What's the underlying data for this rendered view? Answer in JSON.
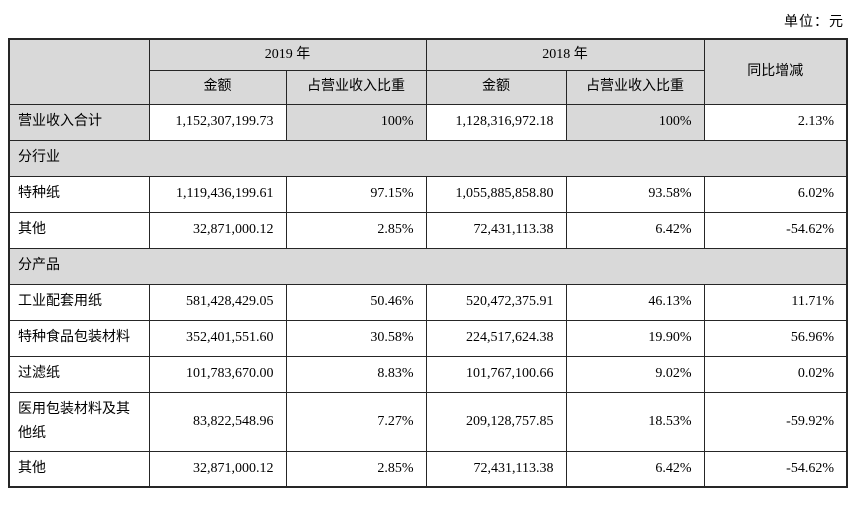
{
  "unit_label": "单位：元",
  "table": {
    "header": {
      "y2019": "2019 年",
      "y2018": "2018 年",
      "amount": "金额",
      "pct": "占营业收入比重",
      "yoy": "同比增减"
    },
    "rows": [
      {
        "type": "data",
        "highlight": true,
        "label": "营业收入合计",
        "a2019": "1,152,307,199.73",
        "p2019": "100%",
        "a2018": "1,128,316,972.18",
        "p2018": "100%",
        "yoy": "2.13%"
      },
      {
        "type": "section",
        "label": "分行业"
      },
      {
        "type": "data",
        "highlight": false,
        "label": "特种纸",
        "a2019": "1,119,436,199.61",
        "p2019": "97.15%",
        "a2018": "1,055,885,858.80",
        "p2018": "93.58%",
        "yoy": "6.02%"
      },
      {
        "type": "data",
        "highlight": false,
        "label": "其他",
        "a2019": "32,871,000.12",
        "p2019": "2.85%",
        "a2018": "72,431,113.38",
        "p2018": "6.42%",
        "yoy": "-54.62%"
      },
      {
        "type": "section",
        "label": "分产品"
      },
      {
        "type": "data",
        "highlight": false,
        "label": "工业配套用纸",
        "a2019": "581,428,429.05",
        "p2019": "50.46%",
        "a2018": "520,472,375.91",
        "p2018": "46.13%",
        "yoy": "11.71%"
      },
      {
        "type": "data",
        "highlight": false,
        "label": "特种食品包装材料",
        "a2019": "352,401,551.60",
        "p2019": "30.58%",
        "a2018": "224,517,624.38",
        "p2018": "19.90%",
        "yoy": "56.96%"
      },
      {
        "type": "data",
        "highlight": false,
        "label": "过滤纸",
        "a2019": "101,783,670.00",
        "p2019": "8.83%",
        "a2018": "101,767,100.66",
        "p2018": "9.02%",
        "yoy": "0.02%"
      },
      {
        "type": "data",
        "highlight": false,
        "label": "医用包装材料及其他纸",
        "a2019": "83,822,548.96",
        "p2019": "7.27%",
        "a2018": "209,128,757.85",
        "p2018": "18.53%",
        "yoy": "-59.92%"
      },
      {
        "type": "data",
        "highlight": false,
        "label": "其他",
        "a2019": "32,871,000.12",
        "p2019": "2.85%",
        "a2018": "72,431,113.38",
        "p2018": "6.42%",
        "yoy": "-54.62%"
      }
    ]
  },
  "colors": {
    "header_bg": "#d9d9d9",
    "border": "#262626"
  }
}
